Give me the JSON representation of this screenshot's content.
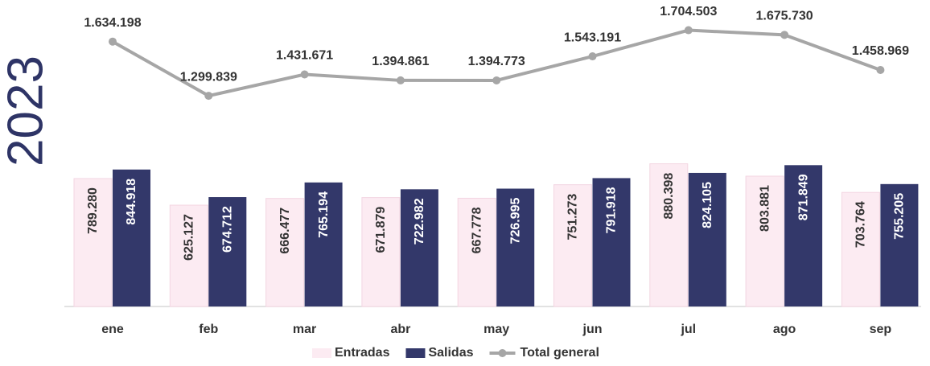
{
  "chart_data": {
    "type": "bar",
    "title": "2023",
    "categories": [
      "ene",
      "feb",
      "mar",
      "abr",
      "may",
      "jun",
      "jul",
      "ago",
      "sep"
    ],
    "series": [
      {
        "name": "Entradas",
        "color": "#fcebf2",
        "values": [
          789280,
          625127,
          666477,
          671879,
          667778,
          751273,
          880398,
          803881,
          703764
        ],
        "value_labels": [
          "789.280",
          "625.127",
          "666.477",
          "671.879",
          "667.778",
          "751.273",
          "880.398",
          "803.881",
          "703.764"
        ]
      },
      {
        "name": "Salidas",
        "color": "#33386a",
        "values": [
          844918,
          674712,
          765194,
          722982,
          726995,
          791918,
          824105,
          871849,
          755205
        ],
        "value_labels": [
          "844.918",
          "674.712",
          "765.194",
          "722.982",
          "726.995",
          "791.918",
          "824.105",
          "871.849",
          "755.205"
        ]
      },
      {
        "name": "Total general",
        "type": "line",
        "color": "#a6a6a6",
        "values": [
          1634198,
          1299839,
          1431671,
          1394861,
          1394773,
          1543191,
          1704503,
          1675730,
          1458969
        ],
        "value_labels": [
          "1.634.198",
          "1.299.839",
          "1.431.671",
          "1.394.861",
          "1.394.773",
          "1.543.191",
          "1.704.503",
          "1.675.730",
          "1.458.969"
        ]
      }
    ],
    "legend": "bottom"
  }
}
